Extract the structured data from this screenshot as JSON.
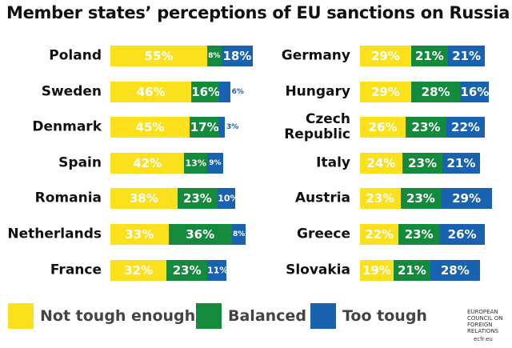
{
  "chart_data": {
    "type": "bar",
    "stacked": true,
    "orientation": "horizontal",
    "title": "Member states’ perceptions of EU sanctions on Russia",
    "categories": [
      "Poland",
      "Sweden",
      "Denmark",
      "Spain",
      "Romania",
      "Netherlands",
      "France",
      "Germany",
      "Hungary",
      "Czech\nRepublic",
      "Italy",
      "Austria",
      "Greece",
      "Slovakia"
    ],
    "series": [
      {
        "name": "Not tough enough",
        "color": "#fbe01c",
        "values": [
          55,
          46,
          45,
          42,
          38,
          33,
          32,
          29,
          29,
          26,
          24,
          23,
          22,
          19
        ],
        "value_labels": [
          "55%",
          "46%",
          "45%",
          "42%",
          "38%",
          "33%",
          "32%",
          "29%",
          "29%",
          "26%",
          "24%",
          "23%",
          "22%",
          "19%"
        ]
      },
      {
        "name": "Balanced",
        "color": "#148a3c",
        "values": [
          8,
          16,
          17,
          13,
          23,
          36,
          23,
          21,
          28,
          23,
          23,
          23,
          23,
          21
        ],
        "value_labels": [
          "8%",
          "16%",
          "17%",
          "13%",
          "23%",
          "36%",
          "23%",
          "21%",
          "28%",
          "23%",
          "23%",
          "23%",
          "23%",
          "21%"
        ]
      },
      {
        "name": "Too tough",
        "color": "#1862b0",
        "values": [
          18,
          6,
          3,
          9,
          10,
          8,
          11,
          21,
          16,
          22,
          21,
          29,
          26,
          28
        ],
        "value_labels": [
          "18%",
          "6%",
          "3%",
          "9%",
          "10%",
          "8%",
          "11%",
          "21%",
          "16%",
          "22%",
          "21%",
          "29%",
          "26%",
          "28%"
        ]
      }
    ],
    "legend": "bottom",
    "source": "EUROPEAN COUNCIL ON FOREIGN RELATIONS",
    "source_url": "ecfr.eu"
  }
}
